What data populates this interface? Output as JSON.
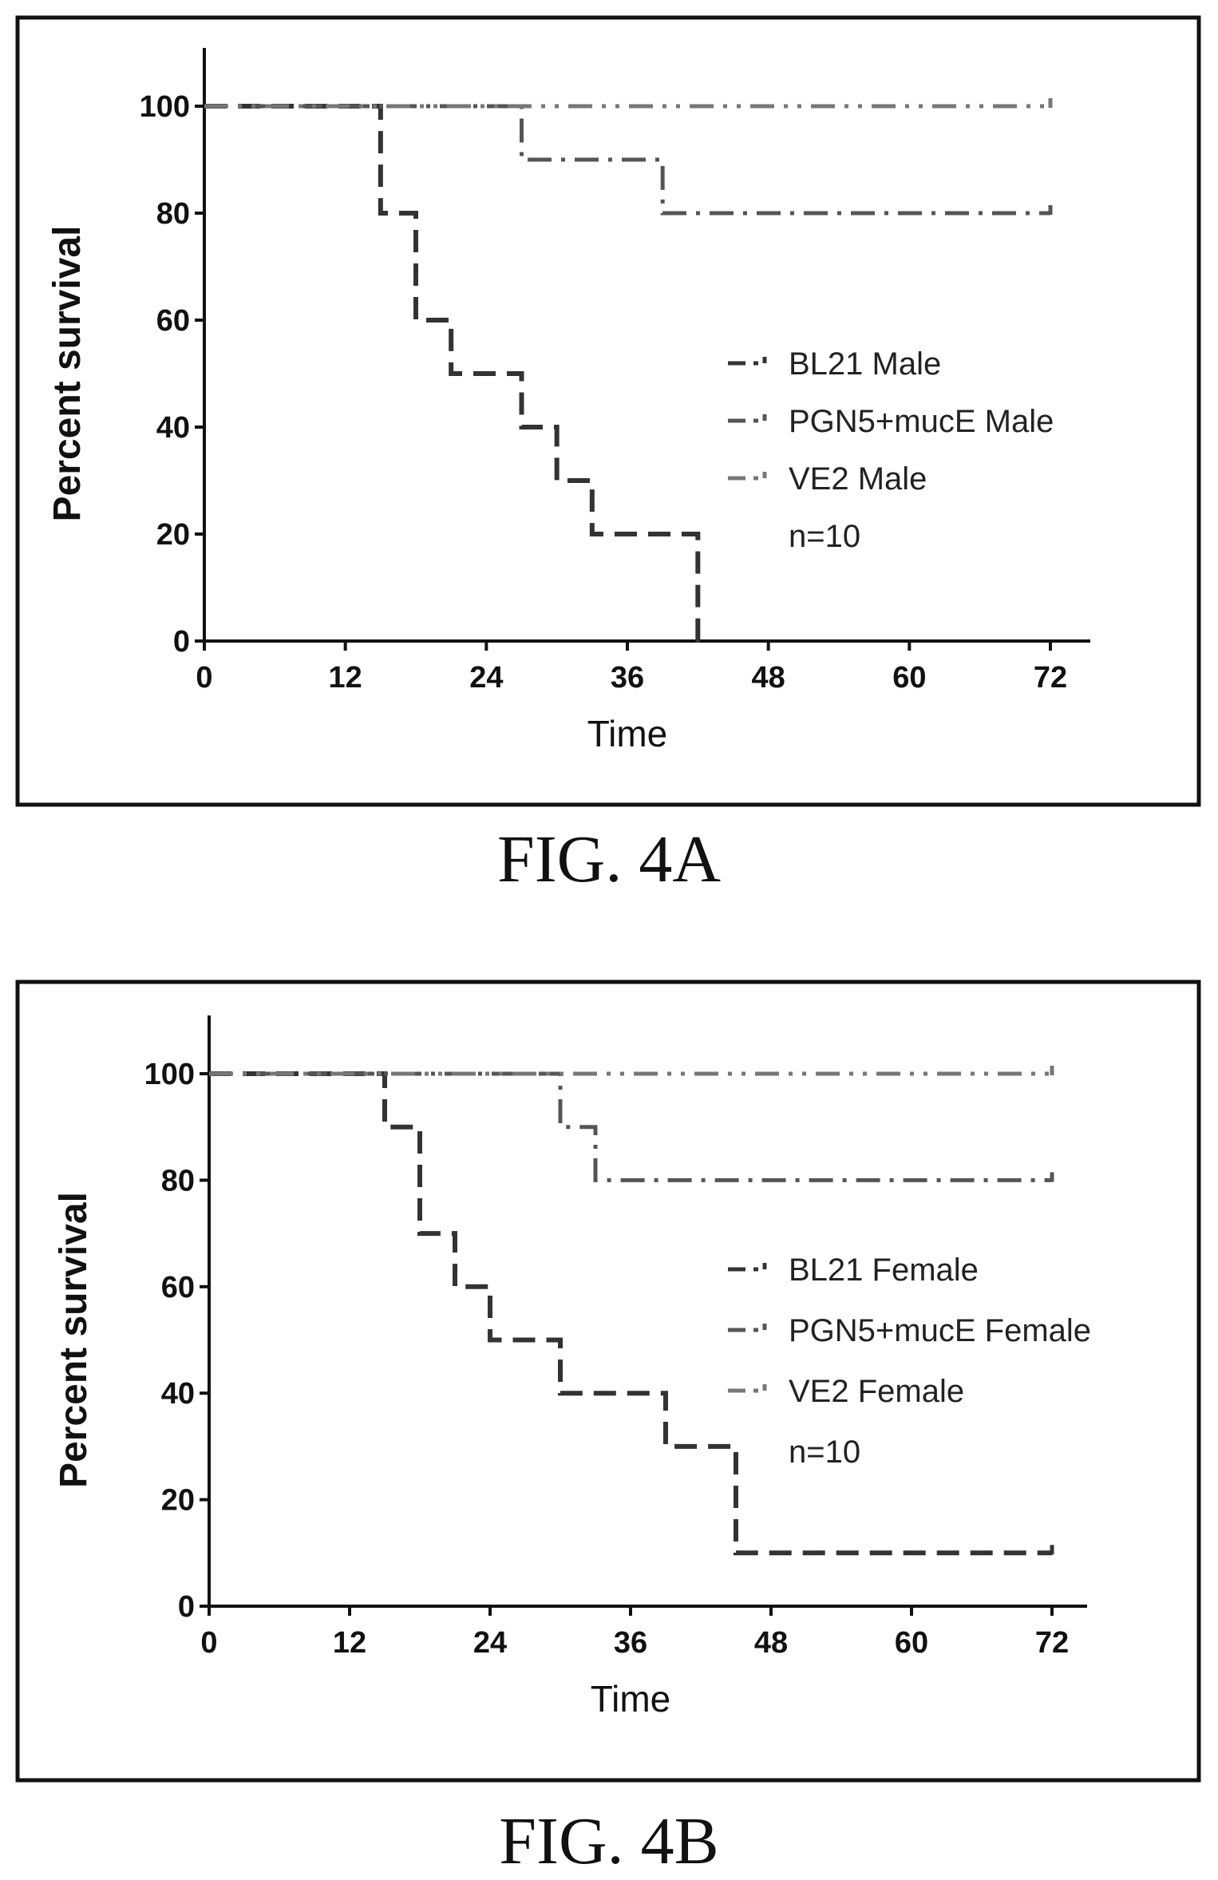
{
  "chart_data": [
    {
      "type": "line",
      "step": true,
      "xlabel": "Time",
      "ylabel": "Percent survival",
      "xlim": [
        0,
        72
      ],
      "ylim": [
        0,
        100
      ],
      "xticks": [
        0,
        12,
        24,
        36,
        48,
        60,
        72
      ],
      "yticks": [
        0,
        20,
        40,
        60,
        80,
        100
      ],
      "grid": false,
      "legend_position": "center-right",
      "legend_note": "n=10",
      "caption": "FIG. 4A",
      "series": [
        {
          "name": "BL21 Male",
          "x": [
            0,
            15,
            18,
            21,
            27,
            30,
            33,
            42
          ],
          "y": [
            100,
            80,
            60,
            50,
            40,
            30,
            20,
            0
          ],
          "color": "#333333"
        },
        {
          "name": "PGN5+mucE Male",
          "x": [
            0,
            27,
            39,
            72
          ],
          "y": [
            100,
            90,
            80,
            80
          ],
          "color": "#555555"
        },
        {
          "name": "VE2 Male",
          "x": [
            0,
            72
          ],
          "y": [
            100,
            100
          ],
          "color": "#777777"
        }
      ]
    },
    {
      "type": "line",
      "step": true,
      "xlabel": "Time",
      "ylabel": "Percent survival",
      "xlim": [
        0,
        72
      ],
      "ylim": [
        0,
        100
      ],
      "xticks": [
        0,
        12,
        24,
        36,
        48,
        60,
        72
      ],
      "yticks": [
        0,
        20,
        40,
        60,
        80,
        100
      ],
      "grid": false,
      "legend_position": "center-right",
      "legend_note": "n=10",
      "caption": "FIG. 4B",
      "series": [
        {
          "name": "BL21 Female",
          "x": [
            0,
            15,
            18,
            21,
            24,
            30,
            39,
            45,
            72
          ],
          "y": [
            100,
            90,
            70,
            60,
            50,
            40,
            30,
            10,
            10
          ],
          "color": "#333333"
        },
        {
          "name": "PGN5+mucE Female",
          "x": [
            0,
            30,
            33,
            72
          ],
          "y": [
            100,
            90,
            80,
            80
          ],
          "color": "#555555"
        },
        {
          "name": "VE2 Female",
          "x": [
            0,
            72
          ],
          "y": [
            100,
            100
          ],
          "color": "#777777"
        }
      ]
    }
  ]
}
